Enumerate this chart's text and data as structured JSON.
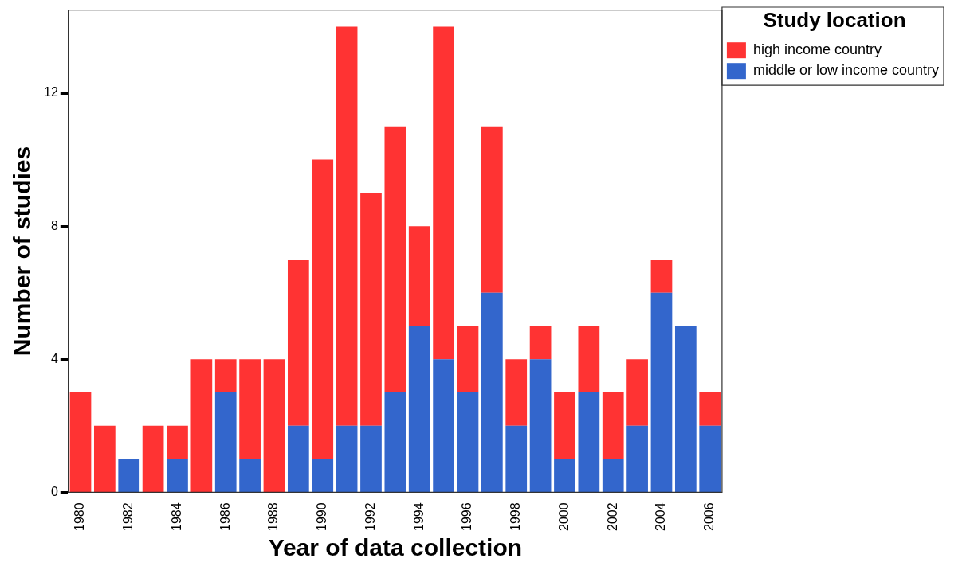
{
  "chart_data": {
    "type": "bar",
    "stacked": true,
    "xlabel": "Year of data collection",
    "ylabel": "Number of studies",
    "legend_title": "Study location",
    "legend": "top right",
    "grid": false,
    "categories": [
      "1980",
      null,
      "1982",
      null,
      "1984",
      null,
      "1986",
      null,
      "1988",
      null,
      "1990",
      null,
      "1992",
      null,
      "1994",
      null,
      "1996",
      null,
      "1998",
      null,
      "2000",
      null,
      "2002",
      null,
      "2004",
      null,
      "2006"
    ],
    "ylim": [
      0,
      14.5
    ],
    "yticks": [
      0,
      4,
      8,
      12
    ],
    "series": [
      {
        "name": "middle or low income country",
        "color": "#3366cc",
        "values": [
          0,
          0,
          1,
          0,
          1,
          0,
          3,
          1,
          0,
          2,
          1,
          2,
          2,
          3,
          5,
          4,
          3,
          6,
          2,
          4,
          1,
          3,
          1,
          2,
          6,
          5,
          2
        ]
      },
      {
        "name": "high income country",
        "color": "#ff3333",
        "values": [
          3,
          2,
          0,
          2,
          1,
          4,
          1,
          3,
          4,
          5,
          9,
          12,
          7,
          8,
          3,
          10,
          2,
          5,
          2,
          1,
          2,
          2,
          2,
          2,
          1,
          0,
          1
        ]
      }
    ]
  }
}
